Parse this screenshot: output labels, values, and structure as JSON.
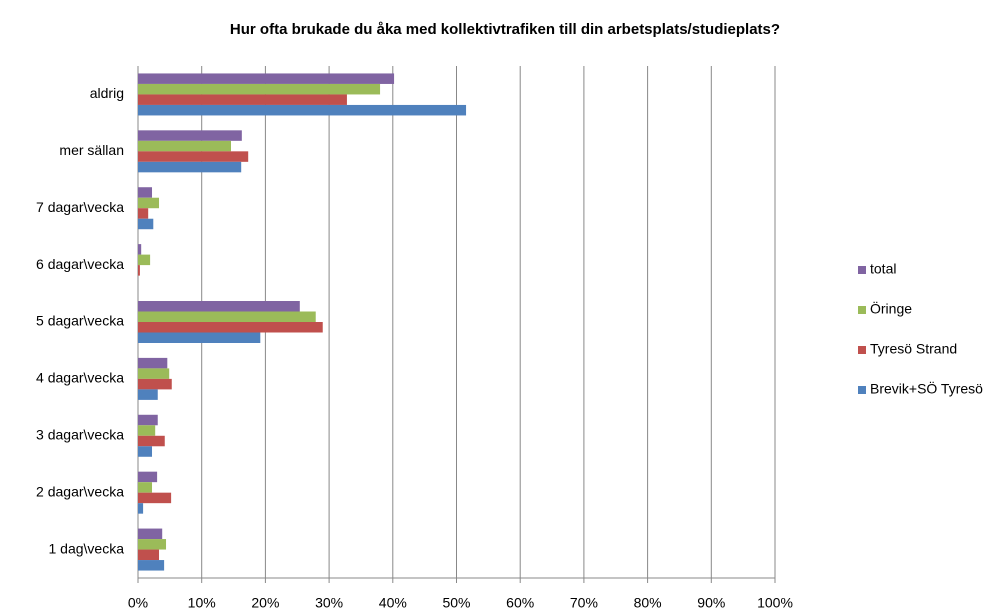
{
  "chart_data": {
    "type": "hbar",
    "title": "Hur ofta brukade du åka med kollektivtrafiken till din arbetsplats/studieplats?",
    "categories": [
      "aldrig",
      "mer sällan",
      "7 dagar\\vecka",
      "6 dagar\\vecka",
      "5 dagar\\vecka",
      "4 dagar\\vecka",
      "3 dagar\\vecka",
      "2 dagar\\vecka",
      "1 dag\\vecka"
    ],
    "series": [
      {
        "name": "total",
        "color": "#8064a2",
        "values": [
          40.2,
          16.3,
          2.2,
          0.5,
          25.4,
          4.6,
          3.1,
          3.0,
          3.8
        ]
      },
      {
        "name": "Öringe",
        "color": "#9bbb59",
        "values": [
          38.0,
          14.6,
          3.3,
          1.9,
          27.9,
          4.9,
          2.7,
          2.2,
          4.4
        ]
      },
      {
        "name": "Tyresö Strand",
        "color": "#c0504d",
        "values": [
          32.8,
          17.3,
          1.6,
          0.3,
          29.0,
          5.3,
          4.2,
          5.2,
          3.3
        ]
      },
      {
        "name": "Brevik+SÖ Tyresö",
        "color": "#4f81bd",
        "values": [
          51.5,
          16.2,
          2.4,
          0,
          19.2,
          3.1,
          2.2,
          0.8,
          4.1
        ]
      }
    ],
    "xlim": [
      0,
      100
    ],
    "xticks": [
      {
        "value": 0,
        "label": "0%"
      },
      {
        "value": 10,
        "label": "10%"
      },
      {
        "value": 20,
        "label": "20%"
      },
      {
        "value": 30,
        "label": "30%"
      },
      {
        "value": 40,
        "label": "40%"
      },
      {
        "value": 50,
        "label": "50%"
      },
      {
        "value": 60,
        "label": "60%"
      },
      {
        "value": 70,
        "label": "70%"
      },
      {
        "value": 80,
        "label": "80%"
      },
      {
        "value": 90,
        "label": "90%"
      },
      {
        "value": 100,
        "label": "100%"
      }
    ],
    "grid": true,
    "legend": "right"
  }
}
